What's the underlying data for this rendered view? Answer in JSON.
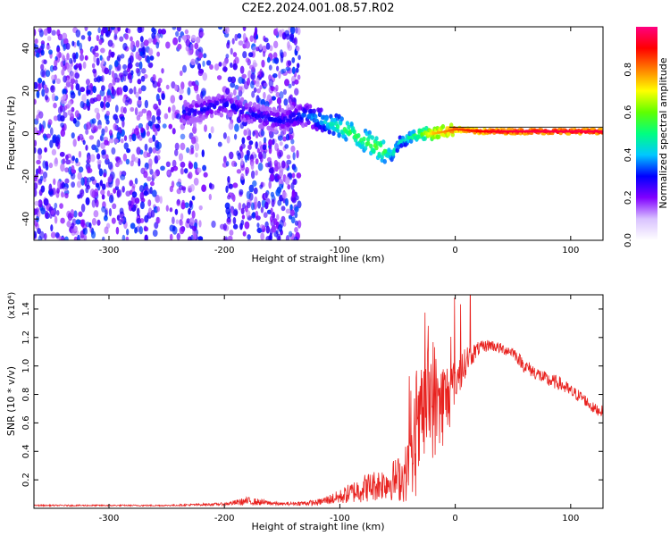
{
  "title": "C2E2.2024.001.08.57.R02",
  "chart_data": [
    {
      "type": "heatmap",
      "title": "C2E2.2024.001.08.57.R02",
      "xlabel": "Height of straight line (km)",
      "ylabel": "Frequency (Hz)",
      "xlim": [
        -365,
        128
      ],
      "ylim": [
        -50,
        50
      ],
      "x_ticks": [
        "-300",
        "-200",
        "-100",
        "0",
        "100"
      ],
      "y_ticks": [
        "-40",
        "-20",
        "0",
        "20",
        "40"
      ],
      "colorbar": {
        "label": "Normalized spectral amplitude",
        "range": [
          0,
          1
        ],
        "ticks": [
          "0.0",
          "0.2",
          "0.4",
          "0.6",
          "0.8"
        ],
        "colormap": [
          "#ffffff",
          "#d9c2ff",
          "#8000ff",
          "#0000ff",
          "#00c8ff",
          "#00ff80",
          "#60ff00",
          "#ffff00",
          "#ff8000",
          "#ff0000",
          "#ff0080"
        ]
      },
      "ridge": {
        "x": [
          -230,
          -200,
          -170,
          -150,
          -130,
          -110,
          -95,
          -80,
          -65,
          -55,
          -48,
          -40,
          -30,
          -20,
          -10,
          0,
          20,
          50,
          80,
          128
        ],
        "y": [
          10,
          14,
          8,
          6,
          9,
          5,
          2,
          -3,
          -7,
          -10,
          -4,
          -2,
          0,
          0,
          1,
          2,
          1,
          1,
          1,
          1
        ],
        "amplitude": [
          0.3,
          0.3,
          0.3,
          0.3,
          0.35,
          0.45,
          0.55,
          0.55,
          0.6,
          0.5,
          0.45,
          0.5,
          0.6,
          0.75,
          0.8,
          0.85,
          0.9,
          0.95,
          0.95,
          0.95
        ]
      },
      "grid": false
    },
    {
      "type": "line",
      "xlabel": "Height of straight line (km)",
      "ylabel": "SNR (10 * v/v)",
      "y_scale_label": "(x10⁴)",
      "xlim": [
        -365,
        128
      ],
      "ylim": [
        0,
        1.5
      ],
      "x_ticks": [
        "-300",
        "-200",
        "-100",
        "0",
        "100"
      ],
      "y_ticks": [
        "0.2",
        "0.4",
        "0.6",
        "0.8",
        "1.0",
        "1.2",
        "1.4"
      ],
      "color": "#e8221f",
      "series": [
        {
          "x": [
            -365,
            -300,
            -250,
            -200,
            -180,
            -150,
            -120,
            -100,
            -80,
            -60,
            -45,
            -35,
            -30,
            -25,
            -20,
            -15,
            -10,
            -5,
            0,
            5,
            10,
            20,
            30,
            40,
            50,
            60,
            70,
            80,
            90,
            100,
            110,
            120,
            128
          ],
          "y": [
            0.02,
            0.02,
            0.02,
            0.03,
            0.05,
            0.03,
            0.04,
            0.08,
            0.14,
            0.18,
            0.22,
            0.35,
            0.6,
            0.75,
            0.8,
            0.7,
            0.75,
            0.8,
            0.9,
            0.95,
            1.05,
            1.12,
            1.15,
            1.12,
            1.1,
            1.0,
            0.95,
            0.9,
            0.88,
            0.82,
            0.78,
            0.7,
            0.68
          ],
          "noise": [
            0.005,
            0.005,
            0.005,
            0.01,
            0.03,
            0.01,
            0.02,
            0.05,
            0.1,
            0.12,
            0.18,
            0.3,
            0.35,
            0.4,
            0.45,
            0.4,
            0.3,
            0.25,
            0.15,
            0.12,
            0.1,
            0.05,
            0.04,
            0.04,
            0.04,
            0.05,
            0.05,
            0.05,
            0.05,
            0.05,
            0.04,
            0.04,
            0.04
          ]
        }
      ]
    }
  ]
}
